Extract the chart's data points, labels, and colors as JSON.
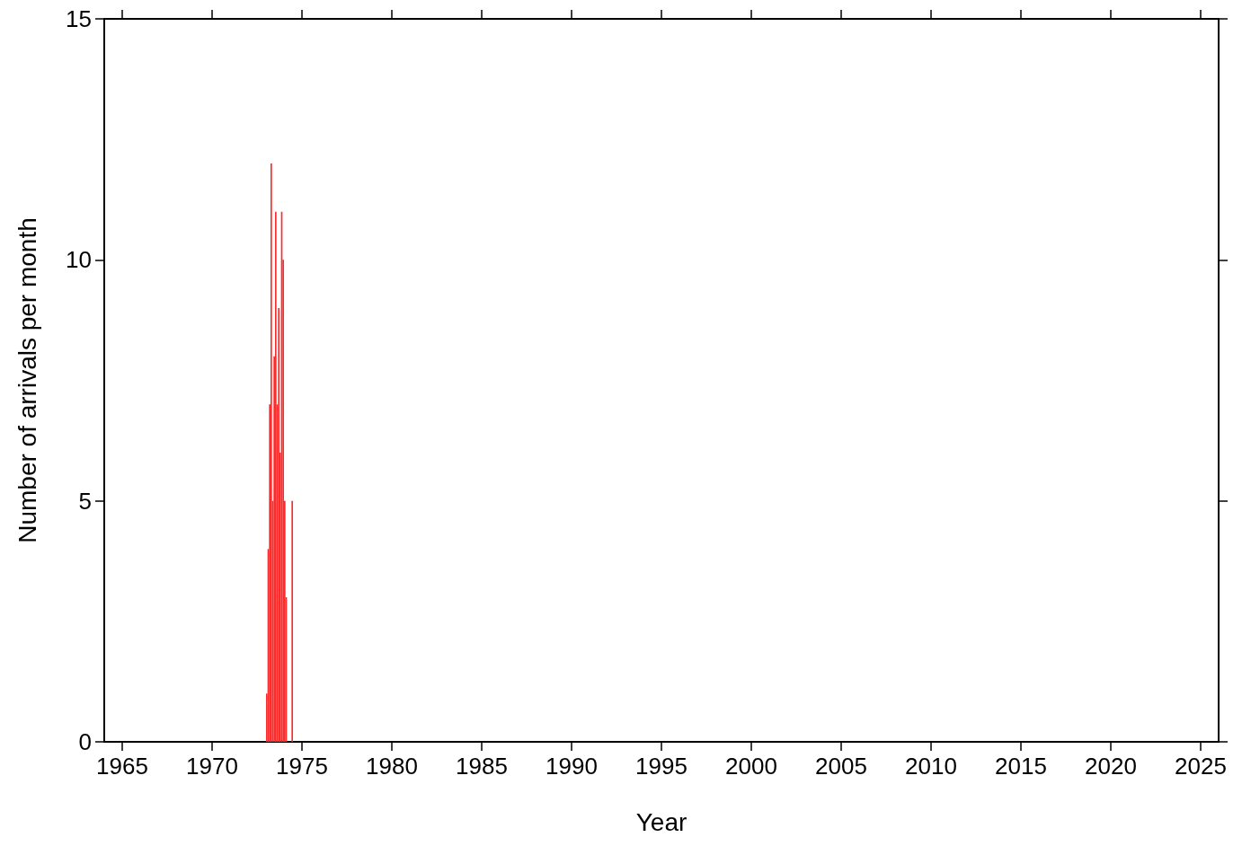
{
  "chart_data": {
    "type": "histogram",
    "xlabel": "Year",
    "ylabel": "Number of arrivals per month",
    "bins": [
      1973.0,
      1973.0833,
      1973.1667,
      1973.25,
      1973.3333,
      1973.4167,
      1973.5,
      1973.5833,
      1973.6667,
      1973.75,
      1973.8333,
      1973.9167,
      1974.0,
      1974.0833,
      1974.1667,
      1974.25,
      1974.3333,
      1974.4167,
      1974.5
    ],
    "values": [
      1,
      4,
      7,
      12,
      5,
      8,
      11,
      7,
      9,
      6,
      11,
      10,
      5,
      3,
      0,
      0,
      0,
      5
    ],
    "color": "#ff2a2a",
    "xlim": [
      1964,
      2026
    ],
    "xticks": [
      1965,
      1970,
      1975,
      1980,
      1985,
      1990,
      1995,
      2000,
      2005,
      2010,
      2015,
      2020,
      2025
    ],
    "ylim": [
      0,
      15
    ],
    "yticks": [
      0,
      5,
      10,
      15
    ],
    "grid": false
  }
}
